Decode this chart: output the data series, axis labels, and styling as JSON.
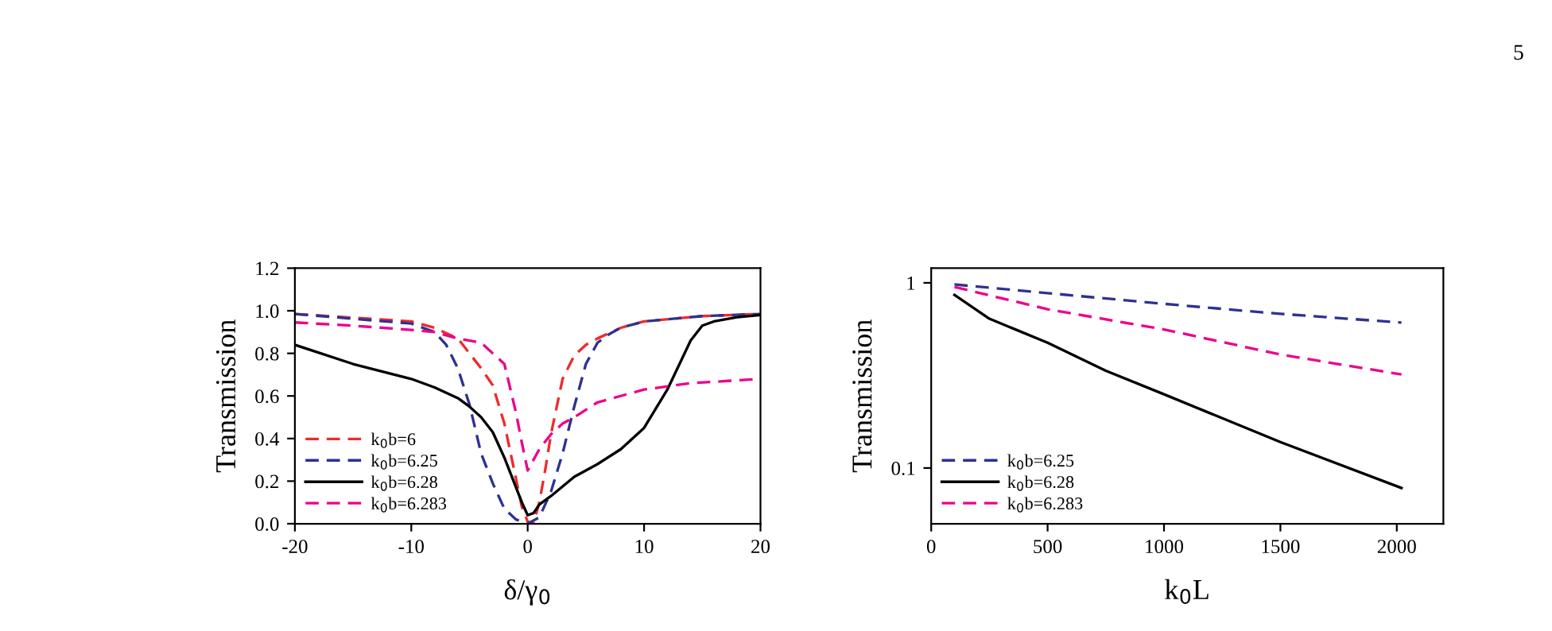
{
  "chart_data": [
    {
      "type": "line",
      "ylabel": "Transmission",
      "xlabel": "δ/γ$_{0}$",
      "xlim": [
        -20,
        20
      ],
      "xticks": [
        -20,
        -10,
        0,
        10,
        20
      ],
      "ylim": [
        0,
        1.2
      ],
      "yticks": [
        {
          "value": 0,
          "label": "0.0"
        },
        {
          "value": 0.2,
          "label": "0.2"
        },
        {
          "value": 0.4,
          "label": "0.4"
        },
        {
          "value": 0.6,
          "label": "0.6"
        },
        {
          "value": 0.8,
          "label": "0.8"
        },
        {
          "value": 1.0,
          "label": "1.0"
        },
        {
          "value": 1.2,
          "label": "1.2"
        }
      ],
      "grid": false,
      "legend": "bottom left",
      "series": [
        {
          "name": "k$_{0}$b=6",
          "color": "#ee2b2b",
          "line_style": "dashed",
          "x": [
            -20,
            -10,
            -8,
            -6,
            -4,
            -3,
            -2,
            -1,
            -0.5,
            0,
            0.5,
            1,
            1.5,
            2,
            3,
            4,
            5,
            6,
            8,
            10,
            15,
            20
          ],
          "values": [
            0.985,
            0.95,
            0.92,
            0.87,
            0.73,
            0.65,
            0.47,
            0.21,
            0.08,
            0.01,
            0.0,
            0.1,
            0.25,
            0.42,
            0.68,
            0.79,
            0.84,
            0.87,
            0.92,
            0.95,
            0.975,
            0.985
          ]
        },
        {
          "name": "k$_{0}$b=6.25",
          "color": "#2e3192",
          "line_style": "dashed",
          "x": [
            -20,
            -10,
            -8,
            -7,
            -6,
            -5,
            -4,
            -3,
            -2,
            -1,
            0,
            1,
            2,
            3,
            4,
            5,
            6,
            7,
            8,
            10,
            15,
            20
          ],
          "values": [
            0.985,
            0.94,
            0.9,
            0.84,
            0.73,
            0.56,
            0.33,
            0.19,
            0.07,
            0.02,
            0.0,
            0.03,
            0.15,
            0.33,
            0.55,
            0.75,
            0.85,
            0.89,
            0.92,
            0.95,
            0.975,
            0.985
          ]
        },
        {
          "name": "k$_{0}$b=6.28",
          "color": "#000000",
          "line_style": "solid",
          "x": [
            -20,
            -15,
            -10,
            -8,
            -6,
            -5,
            -4,
            -3,
            -2,
            -1,
            -0.5,
            0,
            0.5,
            1,
            2,
            4,
            6,
            8,
            10,
            12,
            14,
            15,
            16,
            18,
            20
          ],
          "values": [
            0.84,
            0.75,
            0.68,
            0.64,
            0.59,
            0.55,
            0.5,
            0.43,
            0.31,
            0.17,
            0.1,
            0.04,
            0.05,
            0.09,
            0.13,
            0.22,
            0.28,
            0.35,
            0.45,
            0.63,
            0.86,
            0.93,
            0.95,
            0.97,
            0.98
          ]
        },
        {
          "name": "k$_{0}$b=6.283",
          "color": "#ec008c",
          "line_style": "dashed",
          "x": [
            -20,
            -15,
            -10,
            -8,
            -6,
            -4,
            -3,
            -2,
            -1,
            -0.5,
            0,
            1,
            2,
            3,
            4,
            6,
            8,
            10,
            14,
            20
          ],
          "values": [
            0.945,
            0.93,
            0.91,
            0.9,
            0.87,
            0.85,
            0.8,
            0.75,
            0.52,
            0.38,
            0.25,
            0.35,
            0.42,
            0.47,
            0.5,
            0.57,
            0.6,
            0.63,
            0.66,
            0.68
          ]
        }
      ]
    },
    {
      "type": "line",
      "ylabel": "Transmission",
      "xlabel": "k$_{0}$L",
      "log": "y",
      "xlim": [
        0,
        2200
      ],
      "xticks": [
        0,
        500,
        1000,
        1500,
        2000
      ],
      "ylim": [
        0.05,
        1.2
      ],
      "yticks": [
        0.1,
        1
      ],
      "grid": false,
      "legend": "bottom left",
      "annotations": [
        "5"
      ],
      "series": [
        {
          "name": "k$_{0}$b=6.25",
          "color": "#2e3192",
          "line_style": "dashed",
          "x": [
            100,
            500,
            1000,
            1500,
            2020
          ],
          "values": [
            0.98,
            0.88,
            0.77,
            0.68,
            0.61
          ]
        },
        {
          "name": "k$_{0}$b=6.28",
          "color": "#000000",
          "line_style": "solid",
          "x": [
            100,
            250,
            500,
            750,
            1000,
            1500,
            2020
          ],
          "values": [
            0.86,
            0.64,
            0.475,
            0.335,
            0.25,
            0.138,
            0.078
          ]
        },
        {
          "name": "k$_{0}$b=6.283",
          "color": "#ec008c",
          "line_style": "dashed",
          "x": [
            100,
            500,
            1000,
            1500,
            2020
          ],
          "values": [
            0.95,
            0.72,
            0.56,
            0.41,
            0.32
          ]
        }
      ]
    }
  ]
}
